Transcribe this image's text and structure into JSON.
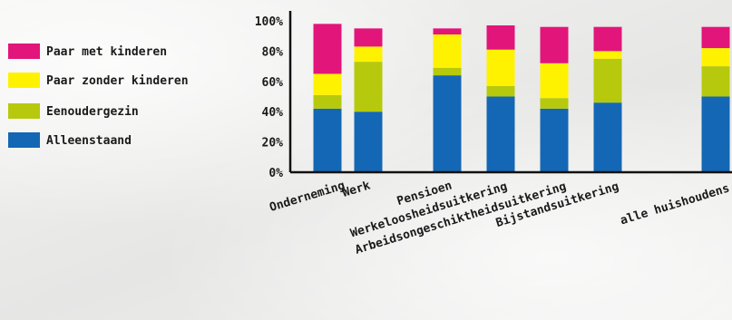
{
  "chart_data": {
    "type": "bar",
    "stacked": true,
    "categories": [
      "Onderneming",
      "Werk",
      "Pensioen",
      "Werkeloosheidsuitkering",
      "Arbeidsongeschiktheidsuitkering",
      "Bijstandsuitkering",
      "alle huishoudens"
    ],
    "series": [
      {
        "name": "Alleenstaand",
        "color": "#1467b4",
        "values": [
          42,
          40,
          64,
          50,
          42,
          46,
          50
        ]
      },
      {
        "name": "Eenoudergezin",
        "color": "#b7c90c",
        "values": [
          9,
          33,
          5,
          7,
          7,
          29,
          20
        ]
      },
      {
        "name": "Paar zonder kinderen",
        "color": "#fff200",
        "values": [
          14,
          10,
          22,
          24,
          23,
          5,
          12
        ]
      },
      {
        "name": "Paar met kinderen",
        "color": "#e2157b",
        "values": [
          33,
          12,
          4,
          16,
          24,
          16,
          14
        ]
      }
    ],
    "legend_order": [
      "Paar met kinderen",
      "Paar zonder kinderen",
      "Eenoudergezin",
      "Alleenstaand"
    ],
    "yticks": [
      "0%",
      "20%",
      "40%",
      "60%",
      "80%",
      "100%"
    ],
    "ylim": [
      0,
      100
    ],
    "legend_position": "left",
    "title": "",
    "xlabel": "",
    "ylabel": ""
  }
}
